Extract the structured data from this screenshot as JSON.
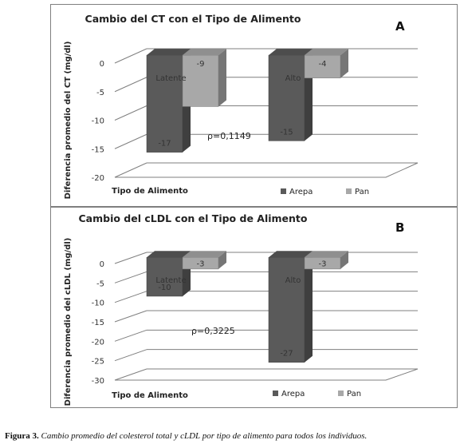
{
  "caption": {
    "label": "Figura 3.",
    "text": "Cambio promedio del colesterol total y cLDL por tipo de alimento para todos los individuos."
  },
  "colors": {
    "arepa": "#5a5a5a",
    "pan": "#a8a8a8",
    "grid": "#7f7f7f"
  },
  "chart_data": [
    {
      "type": "bar",
      "panel_letter": "A",
      "title": "Cambio del CT con el Tipo de Alimento",
      "xlabel": "Tipo de Alimento",
      "ylabel": "Diferencia promedio del CT (mg/dl)",
      "ylim": [
        -20,
        0
      ],
      "yticks": [
        0,
        -5,
        -10,
        -15,
        -20
      ],
      "categories": [
        "Latente",
        "Alto"
      ],
      "series": [
        {
          "name": "Arepa",
          "values": [
            -17,
            -15
          ]
        },
        {
          "name": "Pan",
          "values": [
            -9,
            -4
          ]
        }
      ],
      "annotation": "ρ=0,1149",
      "legend_position": "bottom-right"
    },
    {
      "type": "bar",
      "panel_letter": "B",
      "title": "Cambio del cLDL con el Tipo de Alimento",
      "xlabel": "Tipo de Alimento",
      "ylabel": "Diferencia promedio del cLDL (mg/dl)",
      "ylim": [
        -30,
        0
      ],
      "yticks": [
        0,
        -5,
        -10,
        -15,
        -20,
        -25,
        -30
      ],
      "categories": [
        "Latente",
        "Alto"
      ],
      "series": [
        {
          "name": "Arepa",
          "values": [
            -10,
            -27
          ]
        },
        {
          "name": "Pan",
          "values": [
            -3,
            -3
          ]
        }
      ],
      "annotation": "ρ=0,3225",
      "legend_position": "bottom-right"
    }
  ]
}
